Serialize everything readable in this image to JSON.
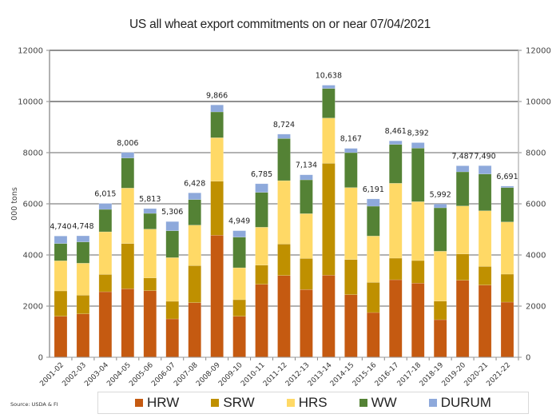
{
  "chart_data": {
    "type": "bar",
    "stacked": true,
    "title": "US all wheat export commitments on or near 07/04/2021",
    "xlabel": "",
    "ylabel": "000 tons",
    "ylim": [
      0,
      12000
    ],
    "yticks": [
      0,
      2000,
      4000,
      6000,
      8000,
      10000,
      12000
    ],
    "secondary_yticks": [
      0,
      2000,
      4000,
      6000,
      8000,
      10000,
      12000
    ],
    "grid": true,
    "legend_position": "bottom",
    "categories": [
      "2001-02",
      "2002-03",
      "2003-04",
      "2004-05",
      "2005-06",
      "2006-07",
      "2007-08",
      "2008-09",
      "2009-10",
      "2010-11",
      "2011-12",
      "2012-13",
      "2013-14",
      "2014-15",
      "2015-16",
      "2016-17",
      "2017-18",
      "2018-19",
      "2019-20",
      "2020-21",
      "2021-22"
    ],
    "series": [
      {
        "name": "HRW",
        "color": "#C55A11",
        "values": [
          1603,
          1697,
          2562,
          2678,
          2603,
          1500,
          2135,
          4771,
          1603,
          2853,
          3197,
          2647,
          3208,
          2447,
          1750,
          3031,
          2897,
          1469,
          3010,
          2822,
          2156
        ]
      },
      {
        "name": "SRW",
        "color": "#BF9000",
        "values": [
          991,
          731,
          678,
          1769,
          501,
          688,
          1449,
          2114,
          647,
          751,
          1231,
          1218,
          4376,
          1375,
          1178,
          844,
          884,
          728,
          1031,
          730,
          1094
        ]
      },
      {
        "name": "HRS",
        "color": "#FFD966",
        "values": [
          1178,
          1250,
          1666,
          2168,
          1906,
          1708,
          1582,
          1699,
          1250,
          1480,
          2478,
          1750,
          1770,
          2813,
          1812,
          2928,
          2303,
          1949,
          1875,
          2176,
          2041
        ]
      },
      {
        "name": "WW",
        "color": "#548235",
        "values": [
          675,
          832,
          875,
          1176,
          615,
          1051,
          1000,
          1010,
          1197,
          1363,
          1647,
          1322,
          1156,
          1365,
          1166,
          1519,
          2093,
          1698,
          1334,
          1438,
          1344
        ]
      },
      {
        "name": "DURUM",
        "color": "#8EA9DB",
        "values": [
          293,
          238,
          234,
          215,
          188,
          359,
          262,
          272,
          252,
          338,
          171,
          197,
          128,
          167,
          285,
          139,
          215,
          148,
          237,
          324,
          56
        ]
      }
    ],
    "totals": [
      4740,
      4748,
      6015,
      8006,
      5813,
      5306,
      6428,
      9866,
      4949,
      6785,
      8724,
      7134,
      10638,
      8167,
      6191,
      8461,
      8392,
      5992,
      7487,
      7490,
      6691
    ],
    "total_labels": [
      "4,740",
      "4,748",
      "6,015",
      "8,006",
      "5,813",
      "5,306",
      "6,428",
      "9,866",
      "4,949",
      "6,785",
      "8,724",
      "7,134",
      "10,638",
      "8,167",
      "6,191",
      "8,461",
      "8,392",
      "5,992",
      "7,487",
      "7,490",
      "6,691"
    ],
    "source": "Source: USDA & FI"
  }
}
